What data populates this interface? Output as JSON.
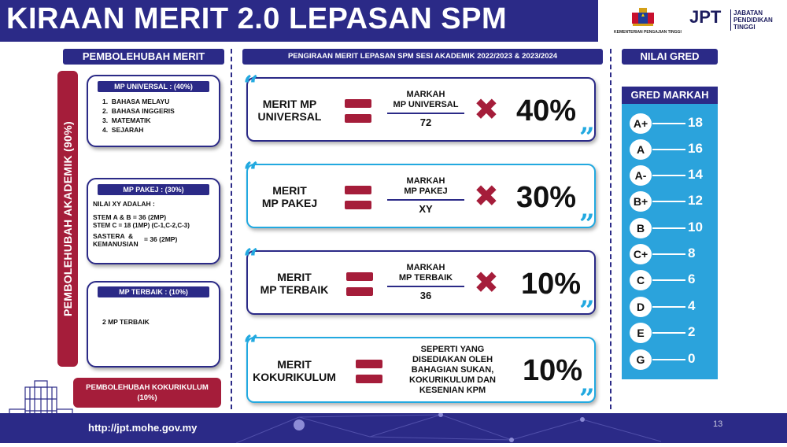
{
  "header": {
    "title": "KIRAAN MERIT 2.0 LEPASAN SPM",
    "ministry": "KEMENTERIAN PENGAJIAN TINGGI",
    "jpt": "JPT",
    "jpt_sub": [
      "JABATAN",
      "PENDIDIKAN",
      "TINGGI"
    ]
  },
  "left": {
    "heading": "PEMBOLEHUBAH MERIT",
    "vertical_label": "PEMBOLEHUBAH AKADEMIK (90%)",
    "mp_universal": {
      "tag": "MP UNIVERSAL : (40%)",
      "items": [
        "1.  BAHASA MELAYU",
        "2.  BAHASA INGGERIS",
        "3.  MATEMATIK",
        "4.  SEJARAH"
      ]
    },
    "mp_pakej": {
      "tag": "MP PAKEJ : (30%)",
      "intro": "NILAI XY ADALAH :",
      "lines": [
        "STEM A & B = 36 (2MP)",
        "STEM C = 18 (1MP) (C-1,C-2,C-3)",
        "SASTERA  &",
        "KEMANUSIAN",
        "= 36 (2MP)"
      ]
    },
    "mp_terbaik": {
      "tag": "MP TERBAIK : (10%)",
      "text": "2 MP TERBAIK"
    },
    "kokurikulum": [
      "PEMBOLEHUBAH KOKURIKULUM",
      "(10%)"
    ]
  },
  "middle": {
    "heading": "PENGIRAAN MERIT LEPASAN SPM SESI AKADEMIK 2022/2023 & 2023/2024",
    "formulas": [
      {
        "label": [
          "MERIT MP",
          "UNIVERSAL"
        ],
        "num": [
          "MARKAH",
          "MP UNIVERSAL"
        ],
        "den": "72",
        "op": "✖",
        "pct": "40%"
      },
      {
        "label": [
          "MERIT",
          "MP PAKEJ"
        ],
        "num": [
          "MARKAH",
          "MP PAKEJ"
        ],
        "den": "XY",
        "op": "✖",
        "pct": "30%"
      },
      {
        "label": [
          "MERIT",
          "MP TERBAIK"
        ],
        "num": [
          "MARKAH",
          "MP TERBAIK"
        ],
        "den": "36",
        "op": "✖",
        "pct": "10%"
      },
      {
        "label": [
          "MERIT",
          "KOKURIKULUM"
        ],
        "desc": [
          "SEPERTI YANG",
          "DISEDIAKAN OLEH",
          "BAHAGIAN SUKAN,",
          "KOKURIKULUM DAN",
          "KESENIAN KPM"
        ],
        "pct": "10%"
      }
    ],
    "quote_open": "“",
    "quote_close": "”"
  },
  "right": {
    "heading": "NILAI GRED",
    "panel_head": "GRED MARKAH",
    "grades": [
      {
        "g": "A+",
        "v": "18"
      },
      {
        "g": "A",
        "v": "16"
      },
      {
        "g": "A-",
        "v": "14"
      },
      {
        "g": "B+",
        "v": "12"
      },
      {
        "g": "B",
        "v": "10"
      },
      {
        "g": "C+",
        "v": "8"
      },
      {
        "g": "C",
        "v": "6"
      },
      {
        "g": "D",
        "v": "4"
      },
      {
        "g": "E",
        "v": "2"
      },
      {
        "g": "G",
        "v": "0"
      }
    ]
  },
  "footer": {
    "url": "http://jpt.mohe.gov.my",
    "page": "13"
  },
  "colors": {
    "navy": "#2b2a87",
    "maroon": "#a51d3a",
    "cyan": "#22a9e0"
  }
}
